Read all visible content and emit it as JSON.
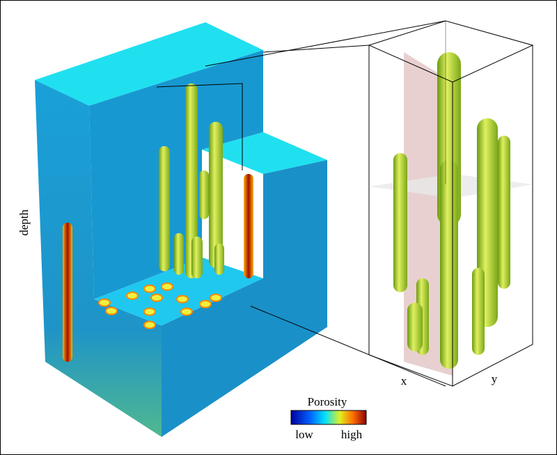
{
  "labels": {
    "depth": "depth",
    "x": "x",
    "y": "y"
  },
  "colorbar": {
    "title": "Porosity",
    "low": "low",
    "high": "high"
  }
}
